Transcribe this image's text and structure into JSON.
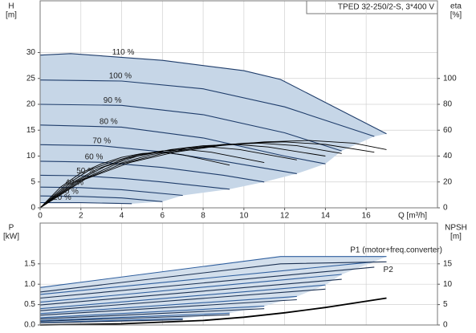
{
  "chart_data": [
    {
      "type": "line",
      "title": "TPED 32-250/2-S, 3*400 V",
      "ylabel": "H",
      "yunit": "[m]",
      "y2label": "eta",
      "y2unit": "[%]",
      "xlabel": "Q [m³/h]",
      "xlim": [
        0,
        19.5
      ],
      "xticks": [
        0,
        2,
        4,
        6,
        8,
        10,
        12,
        14,
        16
      ],
      "ylim": [
        0,
        40
      ],
      "yticks": [
        0,
        5,
        10,
        15,
        20,
        25,
        30
      ],
      "y2lim": [
        0,
        160
      ],
      "y2ticks": [
        0,
        20,
        40,
        60,
        80,
        100
      ],
      "grid": true,
      "fill_color": "#c6d6e7",
      "series": [
        {
          "name": "110 %",
          "color": "#1f3d6b",
          "x": [
            0,
            1.5,
            6,
            10,
            11.8,
            17
          ],
          "values": [
            29.5,
            29.8,
            28.5,
            26.5,
            24.8,
            14.3
          ]
        },
        {
          "name": "100 %",
          "color": "#1f3d6b",
          "x": [
            0,
            4,
            8,
            12,
            16.4
          ],
          "values": [
            24.7,
            24.5,
            23,
            19.5,
            13.8
          ]
        },
        {
          "name": "90 %",
          "color": "#1f3d6b",
          "x": [
            0,
            4,
            8,
            12,
            14.8
          ],
          "values": [
            20,
            19.8,
            18,
            14.5,
            11
          ]
        },
        {
          "name": "80 %",
          "color": "#1f3d6b",
          "x": [
            0,
            4,
            8,
            12,
            14
          ],
          "values": [
            16,
            15.6,
            13.5,
            10,
            8.5
          ]
        },
        {
          "name": "70 %",
          "color": "#1f3d6b",
          "x": [
            0,
            3,
            6,
            9,
            12.6
          ],
          "values": [
            12.2,
            12,
            10.8,
            9,
            6.6
          ]
        },
        {
          "name": "60 %",
          "color": "#1f3d6b",
          "x": [
            0,
            3,
            6,
            9,
            11
          ],
          "values": [
            9,
            8.8,
            7.8,
            6.3,
            5
          ]
        },
        {
          "name": "50 %",
          "color": "#1f3d6b",
          "x": [
            0,
            2,
            4,
            6,
            9.3
          ],
          "values": [
            6.3,
            6.2,
            5.7,
            5,
            3.6
          ]
        },
        {
          "name": "40 %",
          "color": "#1f3d6b",
          "x": [
            0,
            2,
            4,
            7
          ],
          "values": [
            4,
            3.9,
            3.5,
            2.4
          ]
        },
        {
          "name": "30 %",
          "color": "#1f3d6b",
          "x": [
            0,
            2,
            4,
            6
          ],
          "values": [
            2.3,
            2.2,
            1.9,
            1.2
          ]
        },
        {
          "name": "20 %",
          "color": "#1f3d6b",
          "x": [
            0,
            2,
            4.5
          ],
          "values": [
            1,
            1,
            0.8
          ]
        },
        {
          "axis": "y2",
          "color": "#000000",
          "x": [
            0,
            2.2,
            4.4,
            6.6,
            8.8,
            11,
            13.2,
            15.4,
            17
          ],
          "values": [
            0,
            22,
            35,
            43,
            48,
            51,
            52,
            50,
            45
          ]
        },
        {
          "axis": "y2",
          "color": "#000000",
          "x": [
            0,
            2,
            4,
            6,
            8,
            10,
            12,
            14,
            16.4
          ],
          "values": [
            0,
            21,
            34,
            42,
            47,
            50,
            51,
            49,
            43
          ]
        },
        {
          "axis": "y2",
          "color": "#000000",
          "x": [
            0,
            1.8,
            3.6,
            5.4,
            7.2,
            9,
            10.8,
            12.6,
            14.8
          ],
          "values": [
            0,
            20,
            33,
            41,
            46,
            49,
            50,
            48,
            42
          ]
        },
        {
          "axis": "y2",
          "color": "#000000",
          "x": [
            0,
            1.6,
            3.2,
            4.8,
            6.4,
            8,
            9.6,
            11.2,
            14
          ],
          "values": [
            0,
            19,
            32,
            40,
            45,
            48,
            49,
            47,
            40
          ]
        },
        {
          "axis": "y2",
          "color": "#000000",
          "x": [
            0,
            1.4,
            2.8,
            4.2,
            5.6,
            7,
            8.4,
            9.8,
            12.6
          ],
          "values": [
            0,
            18,
            30,
            38,
            43,
            46,
            47,
            45,
            37
          ]
        },
        {
          "axis": "y2",
          "color": "#000000",
          "x": [
            0,
            1.2,
            2.4,
            3.6,
            4.8,
            6,
            7.2,
            8.4,
            11
          ],
          "values": [
            0,
            17,
            29,
            36,
            41,
            44,
            45,
            43,
            35
          ]
        },
        {
          "axis": "y2",
          "color": "#000000",
          "x": [
            0,
            1,
            2,
            3,
            4,
            5,
            6,
            7,
            9.3
          ],
          "values": [
            0,
            16,
            27,
            34,
            39,
            42,
            43,
            41,
            33
          ]
        }
      ]
    },
    {
      "type": "line",
      "ylabel": "P",
      "yunit": "[kW]",
      "y2label": "NPSH",
      "y2unit": "[m]",
      "xlim": [
        0,
        19.5
      ],
      "xticks": [
        0,
        2,
        4,
        6,
        8,
        10,
        12,
        14,
        16
      ],
      "ylim": [
        0,
        2.5
      ],
      "yticks": [
        {
          "value": 0,
          "label": "0.0"
        },
        {
          "value": 0.5,
          "label": "0.5"
        },
        {
          "value": 1,
          "label": "1.0"
        },
        {
          "value": 1.5,
          "label": "1.5"
        }
      ],
      "y2lim": [
        0,
        25
      ],
      "y2ticks": [
        0,
        5,
        10,
        15
      ],
      "grid": true,
      "fill_color": "#d3dfec",
      "series": [
        {
          "name": "P1 (motor+freq.converter)",
          "color": "#2f5f9e",
          "x": [
            0,
            11.8,
            17
          ],
          "values": [
            0.92,
            1.68,
            1.68
          ]
        },
        {
          "color": "#2f5f9e",
          "x": [
            0,
            16.4
          ],
          "values": [
            0.75,
            1.55
          ]
        },
        {
          "color": "#2f5f9e",
          "x": [
            0,
            14.8
          ],
          "values": [
            0.56,
            1.24
          ]
        },
        {
          "color": "#2f5f9e",
          "x": [
            0,
            14
          ],
          "values": [
            0.4,
            0.98
          ]
        },
        {
          "color": "#2f5f9e",
          "x": [
            0,
            12.6
          ],
          "values": [
            0.28,
            0.7
          ]
        },
        {
          "color": "#2f5f9e",
          "x": [
            0,
            11
          ],
          "values": [
            0.18,
            0.46
          ]
        },
        {
          "color": "#2f5f9e",
          "x": [
            0,
            9.3
          ],
          "values": [
            0.11,
            0.29
          ]
        },
        {
          "color": "#2f5f9e",
          "x": [
            0,
            7
          ],
          "values": [
            0.06,
            0.16
          ]
        },
        {
          "name": "P2",
          "color": "#1c3152",
          "x": [
            0,
            11.8,
            17
          ],
          "values": [
            0.81,
            1.5,
            1.55
          ]
        },
        {
          "color": "#1c3152",
          "x": [
            0,
            16.4
          ],
          "values": [
            0.66,
            1.42
          ]
        },
        {
          "color": "#1c3152",
          "x": [
            0,
            14.8
          ],
          "values": [
            0.49,
            1.12
          ]
        },
        {
          "color": "#1c3152",
          "x": [
            0,
            14
          ],
          "values": [
            0.35,
            0.88
          ]
        },
        {
          "color": "#1c3152",
          "x": [
            0,
            12.6
          ],
          "values": [
            0.24,
            0.62
          ]
        },
        {
          "color": "#1c3152",
          "x": [
            0,
            11
          ],
          "values": [
            0.15,
            0.4
          ]
        },
        {
          "color": "#1c3152",
          "x": [
            0,
            9.3
          ],
          "values": [
            0.09,
            0.25
          ]
        },
        {
          "color": "#1c3152",
          "x": [
            0,
            7
          ],
          "values": [
            0.05,
            0.13
          ]
        },
        {
          "axis": "y2",
          "color": "#000000",
          "x": [
            0,
            4,
            8,
            10,
            12,
            14,
            17
          ],
          "values": [
            0,
            0.3,
            1.1,
            1.9,
            3,
            4.3,
            6.6
          ]
        }
      ]
    }
  ]
}
